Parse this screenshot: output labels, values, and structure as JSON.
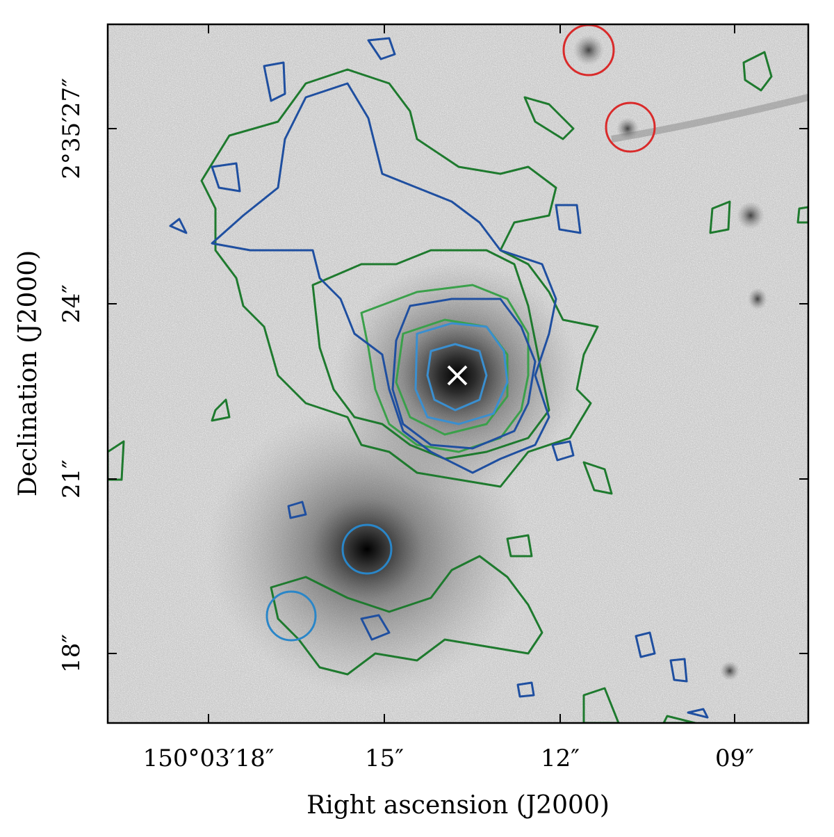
{
  "figure": {
    "xlabel": "Right ascension (J2000)",
    "ylabel": "Declination (J2000)",
    "x_ticks": [
      "150°03′18″",
      "15″",
      "12″",
      "09″"
    ],
    "y_ticks": [
      "2°35′27″",
      "24″",
      "21″",
      "18″"
    ]
  },
  "colors": {
    "frame": "#000000",
    "contour_green": "#1e7a2e",
    "contour_green_light": "#3aa04a",
    "contour_blue_dark": "#1f4fa0",
    "contour_blue_light": "#3a8fd0",
    "red_circle": "#d92a2a",
    "blue_circle": "#2a86c8",
    "marker": "#ffffff"
  },
  "markers": {
    "center_cross": "cross-marker",
    "red_circles": 2,
    "blue_circles": 2
  }
}
